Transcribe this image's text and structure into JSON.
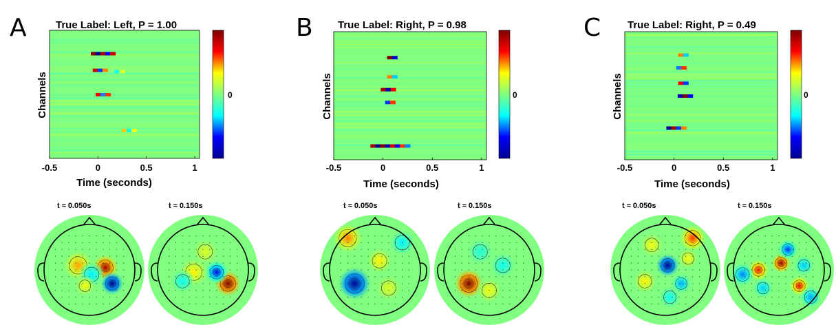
{
  "chart_data": [
    {
      "type": "heatmap",
      "panel": "A",
      "title": "True Label: Left, P = 1.00",
      "xlabel": "Time (seconds)",
      "ylabel": "Channels",
      "xlim": [
        -0.5,
        1.05
      ],
      "xticks": [
        "-0.5",
        "0",
        "0.5",
        "1"
      ],
      "xtick_values": [
        -0.5,
        0,
        0.5,
        1
      ],
      "colorbar_label": "0",
      "topomaps": [
        {
          "label": "t  ≈ 0.050s",
          "blobs": [
            [
              0.35,
              -0.05,
              0.9,
              0.16
            ],
            [
              0.5,
              0.3,
              -1.0,
              0.14
            ],
            [
              -0.25,
              -0.1,
              0.45,
              0.18
            ],
            [
              0.05,
              0.1,
              -0.35,
              0.15
            ],
            [
              -0.1,
              0.35,
              0.3,
              0.12
            ]
          ]
        },
        {
          "label": "t ≈ 0.150s",
          "blobs": [
            [
              0.55,
              0.3,
              1.0,
              0.16
            ],
            [
              0.3,
              0.05,
              -0.75,
              0.14
            ],
            [
              -0.2,
              0.05,
              0.35,
              0.17
            ],
            [
              -0.45,
              0.25,
              -0.3,
              0.14
            ],
            [
              0.05,
              -0.4,
              0.25,
              0.15
            ]
          ]
        }
      ]
    },
    {
      "type": "heatmap",
      "panel": "B",
      "title": "True Label: Right, P = 0.98",
      "xlabel": "Time (seconds)",
      "ylabel": "Channels",
      "xlim": [
        -0.5,
        1.05
      ],
      "xticks": [
        "-0.5",
        "0",
        "0.5",
        "1"
      ],
      "xtick_values": [
        -0.5,
        0,
        0.5,
        1
      ],
      "colorbar_label": "0",
      "topomaps": [
        {
          "label": "t  ≈ 0.050s",
          "blobs": [
            [
              -0.45,
              0.3,
              -1.0,
              0.2
            ],
            [
              0.1,
              -0.2,
              0.35,
              0.15
            ],
            [
              -0.6,
              -0.7,
              0.5,
              0.18
            ],
            [
              0.6,
              -0.6,
              -0.35,
              0.15
            ],
            [
              0.3,
              0.4,
              0.25,
              0.15
            ]
          ]
        },
        {
          "label": "t ≈ 0.150s",
          "blobs": [
            [
              -0.45,
              0.3,
              1.0,
              0.18
            ],
            [
              0.3,
              -0.1,
              -0.3,
              0.15
            ],
            [
              0.0,
              0.45,
              0.3,
              0.15
            ],
            [
              -0.2,
              -0.4,
              -0.25,
              0.15
            ]
          ]
        }
      ]
    },
    {
      "type": "heatmap",
      "panel": "C",
      "title": "True Label: Right, P = 0.49",
      "xlabel": "Time (seconds)",
      "ylabel": "Channels",
      "xlim": [
        -0.5,
        1.05
      ],
      "xticks": [
        "-0.5",
        "0",
        "0.5",
        "1"
      ],
      "xtick_values": [
        -0.5,
        0,
        0.5,
        1
      ],
      "colorbar_label": "0",
      "topomaps": [
        {
          "label": "t  ≈ 0.050s",
          "blobs": [
            [
              0.05,
              -0.1,
              -1.0,
              0.14
            ],
            [
              -0.45,
              0.25,
              0.35,
              0.14
            ],
            [
              0.35,
              0.3,
              -0.45,
              0.12
            ],
            [
              0.6,
              -0.7,
              0.6,
              0.16
            ],
            [
              -0.3,
              -0.55,
              0.3,
              0.14
            ],
            [
              0.5,
              -0.25,
              0.3,
              0.12
            ],
            [
              0.1,
              0.6,
              -0.3,
              0.13
            ]
          ]
        },
        {
          "label": "t ≈ 0.150s",
          "blobs": [
            [
              0.05,
              -0.15,
              0.9,
              0.12
            ],
            [
              -0.45,
              0.0,
              0.65,
              0.13
            ],
            [
              0.45,
              0.35,
              0.7,
              0.12
            ],
            [
              0.2,
              -0.45,
              -0.6,
              0.12
            ],
            [
              -0.35,
              0.4,
              -0.4,
              0.12
            ],
            [
              0.55,
              -0.1,
              -0.4,
              0.12
            ],
            [
              -0.8,
              0.1,
              -0.5,
              0.14
            ],
            [
              0.7,
              0.6,
              -0.45,
              0.13
            ]
          ]
        }
      ]
    }
  ],
  "colormap": [
    "#00008f",
    "#0000ff",
    "#00ffff",
    "#80ff80",
    "#ffff00",
    "#ff0000",
    "#800000"
  ],
  "background_color": "#ffffff"
}
